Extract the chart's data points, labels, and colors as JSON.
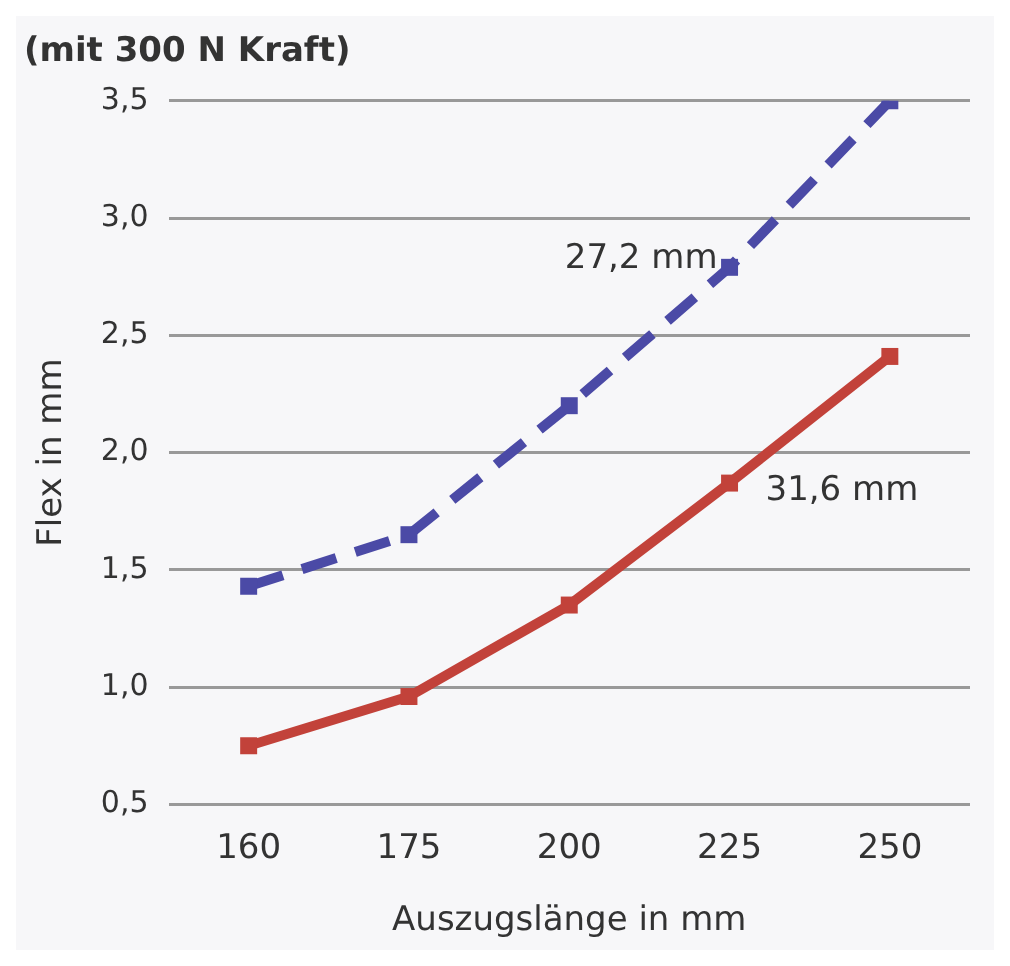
{
  "chart_data": {
    "type": "line",
    "subtitle": "(mit 300 N Kraft)",
    "xlabel": "Auszugslänge in mm",
    "ylabel": "Flex in mm",
    "categories": [
      "160",
      "175",
      "200",
      "225",
      "250"
    ],
    "series": [
      {
        "color": "#4b4aa6",
        "line_style": "dashed",
        "values": [
          1.43,
          1.65,
          2.2,
          2.79,
          3.5
        ]
      },
      {
        "color": "#c2423a",
        "line_style": "solid",
        "values": [
          0.75,
          0.96,
          1.35,
          1.87,
          2.41
        ]
      }
    ],
    "ylim": [
      0.5,
      3.5
    ],
    "yticks": [
      {
        "value": 0.5,
        "label": "0,5"
      },
      {
        "value": 1,
        "label": "1,0"
      },
      {
        "value": 1.5,
        "label": "1,5"
      },
      {
        "value": 2,
        "label": "2,0"
      },
      {
        "value": 2.5,
        "label": "2,5"
      },
      {
        "value": 3,
        "label": "3,0"
      },
      {
        "value": 3.5,
        "label": "3,5"
      }
    ],
    "grid": "y",
    "marker": "square",
    "legend": false,
    "annotations": [
      {
        "text": "27,2 mm",
        "x": "225",
        "y": 2.79
      },
      {
        "text": "31,6 mm",
        "x": "225",
        "y": 1.87
      }
    ]
  }
}
